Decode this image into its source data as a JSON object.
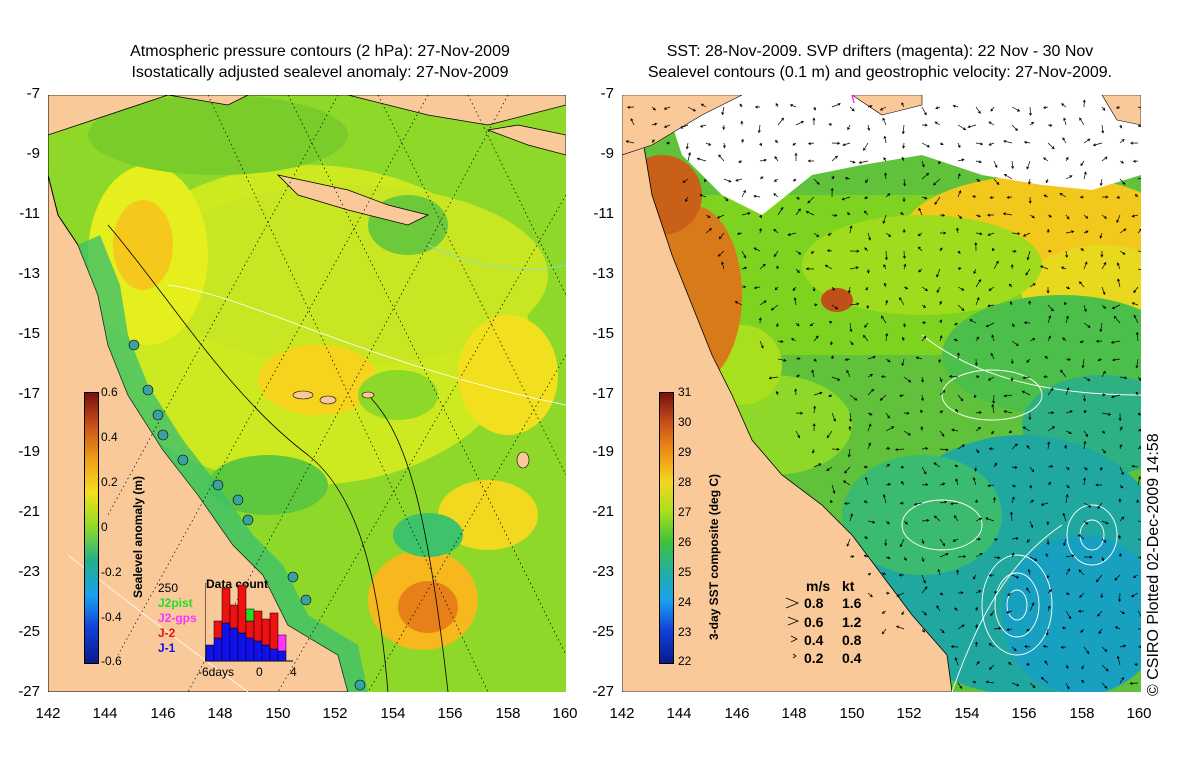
{
  "left_panel": {
    "title_line1": "Atmospheric pressure contours (2 hPa): 27-Nov-2009",
    "title_line2": "Isostatically adjusted sealevel anomaly: 27-Nov-2009",
    "colorbar": {
      "label": "Sealevel anomaly (m)",
      "ticks": [
        "0.6",
        "0.4",
        "0.2",
        "0",
        "-0.2",
        "-0.4",
        "-0.6"
      ],
      "range": [
        -0.6,
        0.6
      ]
    },
    "data_count": {
      "title": "Data count",
      "ymax_label": "250",
      "x_labels": [
        "-6days",
        "0",
        "4"
      ],
      "legend": [
        {
          "name": "J2pist",
          "color": "#22dd22"
        },
        {
          "name": "J2-gps",
          "color": "#ff33ff"
        },
        {
          "name": "J-2",
          "color": "#ee1111"
        },
        {
          "name": "J-1",
          "color": "#1111ee"
        }
      ]
    }
  },
  "right_panel": {
    "title_line1": "SST: 28-Nov-2009. SVP drifters (magenta): 22 Nov - 30 Nov",
    "title_line2": "Sealevel contours (0.1 m) and geostrophic velocity: 27-Nov-2009.",
    "colorbar": {
      "label": "3-day SST composite (deg C)",
      "ticks": [
        "31",
        "30",
        "29",
        "28",
        "27",
        "26",
        "25",
        "24",
        "23",
        "22"
      ],
      "range": [
        22,
        31
      ]
    },
    "velocity_legend": {
      "header_ms": "m/s",
      "header_kt": "kt",
      "rows": [
        {
          "ms": "0.8",
          "kt": "1.6"
        },
        {
          "ms": "0.6",
          "kt": "1.2"
        },
        {
          "ms": "0.4",
          "kt": "0.8"
        },
        {
          "ms": "0.2",
          "kt": "0.4"
        }
      ]
    }
  },
  "axes": {
    "y_ticks": [
      "-7",
      "-9",
      "-11",
      "-13",
      "-15",
      "-17",
      "-19",
      "-21",
      "-23",
      "-25",
      "-27"
    ],
    "x_ticks": [
      "142",
      "144",
      "146",
      "148",
      "150",
      "152",
      "154",
      "156",
      "158",
      "160"
    ]
  },
  "credit": "© CSIRO Plotted 02-Dec-2009 14:58",
  "colors": {
    "land": "#f9c99a",
    "ocean_green": "#7fd31e",
    "ocean_yellow": "#e6ef1e",
    "ocean_orange": "#f6a81c",
    "contour": "#000000",
    "sealevel_contour": "#ffffff"
  }
}
